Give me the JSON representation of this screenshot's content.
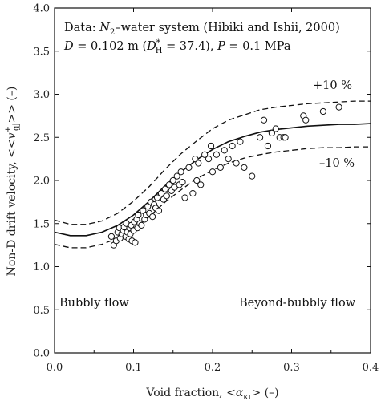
{
  "chart_data": {
    "type": "scatter",
    "xlabel": {
      "prefix": "Void fraction, <",
      "symbol": "α",
      "sub": "κι",
      "suffix": "> (–)"
    },
    "ylabel": {
      "prefix": "Non-D drift velocity, <<",
      "symbol": "v",
      "sup": "+",
      "sub": "gj",
      "suffix": ">> (–)"
    },
    "xlim": [
      0.0,
      0.4
    ],
    "ylim": [
      0.0,
      4.0
    ],
    "x_ticks": [
      "0.0",
      "0.1",
      "0.2",
      "0.3",
      "0.4"
    ],
    "y_ticks": [
      "0.0",
      "0.5",
      "1.0",
      "1.5",
      "2.0",
      "2.5",
      "3.0",
      "3.5",
      "4.0"
    ],
    "x_tick_values": [
      0.0,
      0.1,
      0.2,
      0.3,
      0.4
    ],
    "y_tick_values": [
      0.0,
      0.5,
      1.0,
      1.5,
      2.0,
      2.5,
      3.0,
      3.5,
      4.0
    ],
    "grid": false,
    "annotations": {
      "data_line": {
        "prefix": "Data: ",
        "n": "N",
        "n_sub": "2",
        "rest": "–water system (Hibiki and Ishii, 2000)"
      },
      "cond_line": {
        "d": "D",
        "d_val": " = 0.102 m (",
        "dh": "D",
        "dh_sup": "*",
        "dh_sub": "H",
        "dh_val": " =  37.4), ",
        "p": "P",
        "p_val": " = 0.1 MPa"
      },
      "plus10": "+10 %",
      "minus10": "–10 %",
      "bubbly": "Bubbly flow",
      "beyond": "Beyond-bubbly flow"
    },
    "series": [
      {
        "style": "solid-line",
        "x": [
          0.0,
          0.02,
          0.04,
          0.06,
          0.08,
          0.1,
          0.12,
          0.14,
          0.16,
          0.18,
          0.2,
          0.22,
          0.24,
          0.26,
          0.28,
          0.3,
          0.32,
          0.34,
          0.36,
          0.38,
          0.4
        ],
        "y": [
          1.4,
          1.36,
          1.36,
          1.4,
          1.48,
          1.6,
          1.76,
          1.94,
          2.1,
          2.24,
          2.36,
          2.45,
          2.51,
          2.56,
          2.59,
          2.61,
          2.63,
          2.64,
          2.65,
          2.65,
          2.66
        ]
      },
      {
        "style": "dashed-line",
        "x": [
          0.0,
          0.02,
          0.04,
          0.06,
          0.08,
          0.1,
          0.12,
          0.14,
          0.16,
          0.18,
          0.2,
          0.22,
          0.24,
          0.26,
          0.28,
          0.3,
          0.32,
          0.34,
          0.36,
          0.38,
          0.4
        ],
        "y": [
          1.54,
          1.49,
          1.49,
          1.53,
          1.62,
          1.76,
          1.93,
          2.13,
          2.31,
          2.46,
          2.6,
          2.7,
          2.76,
          2.82,
          2.85,
          2.87,
          2.89,
          2.9,
          2.91,
          2.92,
          2.92
        ]
      },
      {
        "style": "dashed-line",
        "x": [
          0.0,
          0.02,
          0.04,
          0.06,
          0.08,
          0.1,
          0.12,
          0.14,
          0.16,
          0.18,
          0.2,
          0.22,
          0.24,
          0.26,
          0.28,
          0.3,
          0.32,
          0.34,
          0.36,
          0.38,
          0.4
        ],
        "y": [
          1.26,
          1.22,
          1.22,
          1.26,
          1.33,
          1.44,
          1.58,
          1.75,
          1.89,
          2.02,
          2.12,
          2.2,
          2.26,
          2.3,
          2.33,
          2.35,
          2.37,
          2.38,
          2.38,
          2.39,
          2.39
        ]
      },
      {
        "style": "open-circles",
        "x": [
          0.072,
          0.075,
          0.078,
          0.08,
          0.082,
          0.083,
          0.085,
          0.087,
          0.088,
          0.09,
          0.091,
          0.092,
          0.094,
          0.095,
          0.096,
          0.097,
          0.098,
          0.1,
          0.101,
          0.102,
          0.104,
          0.105,
          0.106,
          0.108,
          0.11,
          0.112,
          0.114,
          0.116,
          0.118,
          0.12,
          0.122,
          0.124,
          0.126,
          0.128,
          0.13,
          0.132,
          0.135,
          0.138,
          0.14,
          0.142,
          0.145,
          0.148,
          0.15,
          0.152,
          0.155,
          0.158,
          0.16,
          0.162,
          0.165,
          0.17,
          0.175,
          0.178,
          0.18,
          0.182,
          0.185,
          0.19,
          0.195,
          0.198,
          0.2,
          0.205,
          0.21,
          0.215,
          0.22,
          0.225,
          0.23,
          0.235,
          0.24,
          0.25,
          0.26,
          0.265,
          0.27,
          0.275,
          0.28,
          0.285,
          0.29,
          0.292,
          0.315,
          0.318,
          0.34,
          0.36
        ],
        "y": [
          1.35,
          1.25,
          1.3,
          1.4,
          1.45,
          1.33,
          1.38,
          1.42,
          1.46,
          1.35,
          1.5,
          1.4,
          1.32,
          1.45,
          1.38,
          1.48,
          1.3,
          1.42,
          1.52,
          1.28,
          1.55,
          1.45,
          1.6,
          1.5,
          1.48,
          1.65,
          1.55,
          1.6,
          1.7,
          1.62,
          1.75,
          1.58,
          1.72,
          1.68,
          1.8,
          1.65,
          1.85,
          1.78,
          1.9,
          1.82,
          1.95,
          1.88,
          2.0,
          1.92,
          2.05,
          1.95,
          2.1,
          1.98,
          1.8,
          2.15,
          1.85,
          2.25,
          2.0,
          2.2,
          1.95,
          2.3,
          2.25,
          2.4,
          2.1,
          2.3,
          2.15,
          2.35,
          2.25,
          2.4,
          2.2,
          2.45,
          2.15,
          2.05,
          2.5,
          2.7,
          2.4,
          2.55,
          2.6,
          2.5,
          2.5,
          2.5,
          2.75,
          2.7,
          2.8,
          2.85
        ]
      }
    ]
  }
}
